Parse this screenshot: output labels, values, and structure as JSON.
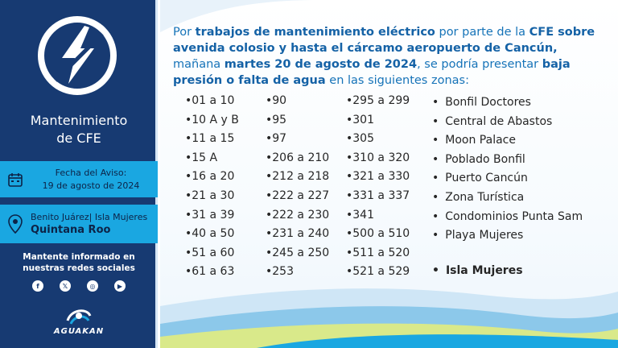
{
  "sidebar": {
    "logo_icon": "lightning-bolt-icon",
    "title_line1": "Mantenimiento",
    "title_line2": "de CFE",
    "date_label": "Fecha del Aviso:",
    "date_value": "19 de agosto de 2024",
    "location_line1": "Benito Juárez| Isla Mujeres",
    "location_line2": "Quintana Roo",
    "social_text_line1": "Mantente informado en",
    "social_text_line2": "nuestras redes sociales",
    "social_icons": [
      "facebook-icon",
      "x-icon",
      "instagram-icon",
      "youtube-icon"
    ],
    "brand": "AGUAKAN"
  },
  "notice": {
    "t1": "Por ",
    "b1": "trabajos de mantenimiento eléctrico",
    "t2": " por parte de la ",
    "b2": "CFE sobre avenida colosio y hasta el cárcamo aeropuerto de Cancún,",
    "t3": " mañana ",
    "b3": "martes 20 de agosto de 2024",
    "t4": ", se podría presentar ",
    "b4": "baja presión o falta de agua",
    "t5": " en las siguientes zonas:"
  },
  "regions": {
    "col1": [
      "•01 a 10",
      "•10 A y B",
      "•11 a 15",
      "•15 A",
      "•16 a 20",
      "•21 a 30",
      "•31 a 39",
      "•40 a 50",
      "•51 a 60",
      "•61 a 63"
    ],
    "col2": [
      "•90",
      "•95",
      "•97",
      "•206 a 210",
      "•212 a 218",
      "•222 a 227",
      "•222 a 230",
      "•231 a 240",
      "•245 a 250",
      "•253"
    ],
    "col3": [
      "•295 a 299",
      "•301",
      "•305",
      "•310 a 320",
      "•321 a 330",
      "•331 a 337",
      "•341",
      "•500 a 510",
      "•511 a 520",
      "•521 a 529"
    ]
  },
  "zones": [
    "Bonfil Doctores",
    "Central de Abastos",
    "Moon Palace",
    "Poblado Bonfil",
    "Puerto Cancún",
    "Zona Turística",
    "Condominios Punta Sam",
    "Playa Mujeres"
  ],
  "island": "Isla Mujeres",
  "colors": {
    "sidebar": "#173a72",
    "band": "#1aa7e1",
    "accent_text": "#1673b8"
  }
}
